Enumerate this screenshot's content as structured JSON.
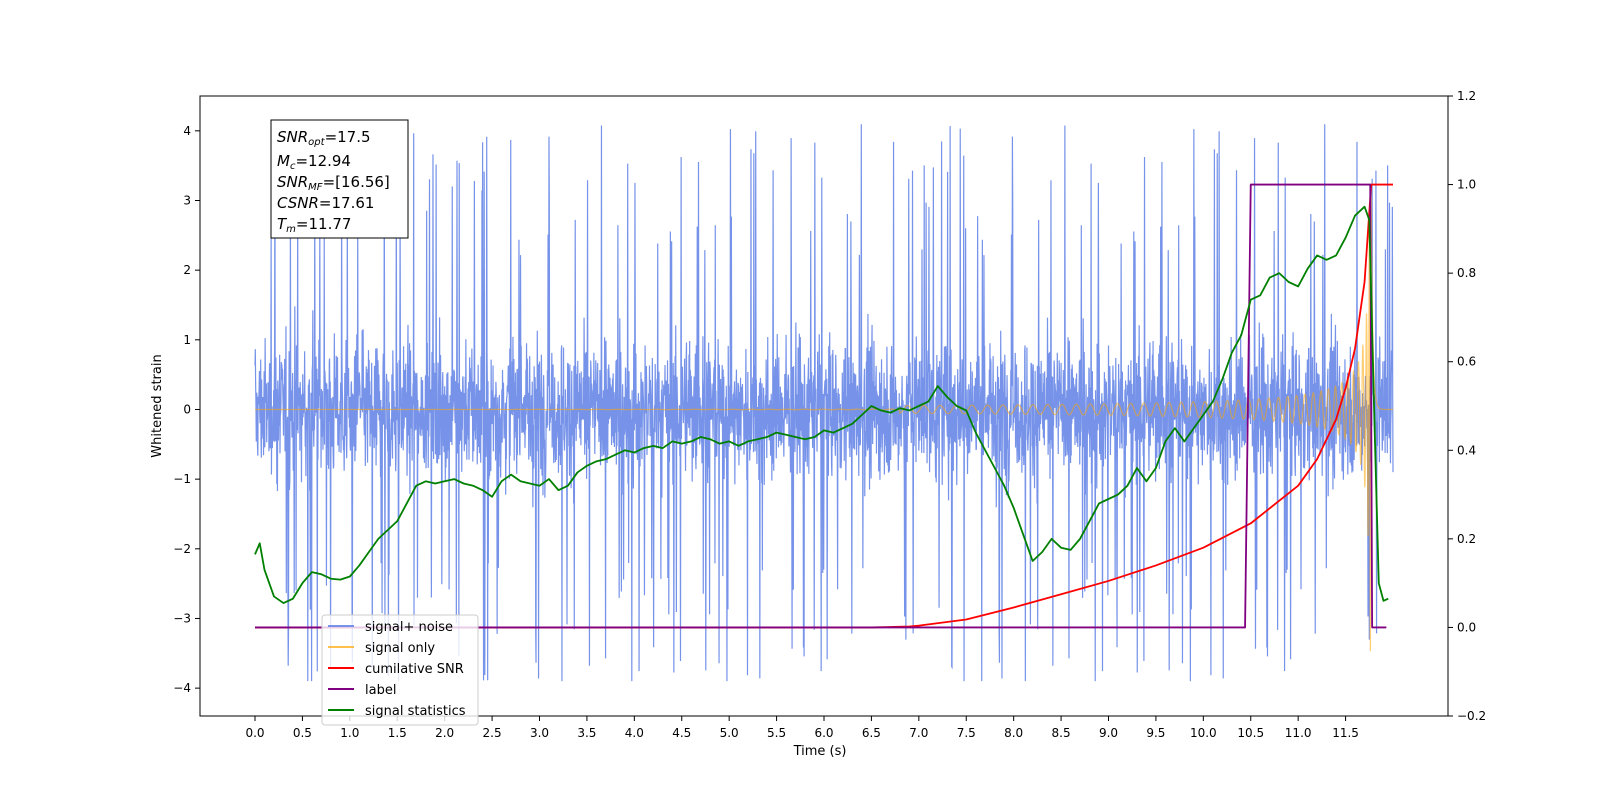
{
  "chart_data": {
    "type": "line",
    "title": "",
    "xlabel": "Time (s)",
    "ylabel": "Whitened strain",
    "xlim": [
      -0.58,
      12.58
    ],
    "ylim": [
      -4.4,
      4.5
    ],
    "y2lim": [
      -0.2,
      1.2
    ],
    "x_ticks": [
      0.0,
      0.5,
      1.0,
      1.5,
      2.0,
      2.5,
      3.0,
      3.5,
      4.0,
      4.5,
      5.0,
      5.5,
      6.0,
      6.5,
      7.0,
      7.5,
      8.0,
      8.5,
      9.0,
      9.5,
      10.0,
      10.5,
      11.0,
      11.5
    ],
    "x_tick_labels": [
      "0.0",
      "0.5",
      "1.0",
      "1.5",
      "2.0",
      "2.5",
      "3.0",
      "3.5",
      "4.0",
      "4.5",
      "5.0",
      "5.5",
      "6.0",
      "6.5",
      "7.0",
      "7.5",
      "8.0",
      "8.5",
      "9.0",
      "9.5",
      "10.0",
      "10.5",
      "11.0",
      "11.5"
    ],
    "y_ticks": [
      -4,
      -3,
      -2,
      -1,
      0,
      1,
      2,
      3,
      4
    ],
    "y_tick_labels": [
      "−4",
      "−3",
      "−2",
      "−1",
      "0",
      "1",
      "2",
      "3",
      "4"
    ],
    "y2_ticks": [
      -0.2,
      0.0,
      0.2,
      0.4,
      0.6,
      0.8,
      1.0,
      1.2
    ],
    "y2_tick_labels": [
      "−0.2",
      "0.0",
      "0.2",
      "0.4",
      "0.6",
      "0.8",
      "1.0",
      "1.2"
    ],
    "grid": false,
    "legend_position": "lower-left",
    "annotation": {
      "lines": [
        {
          "base": "SNR",
          "sub": "opt",
          "value": "=17.5"
        },
        {
          "base": "M",
          "sub": "c",
          "value": "=12.94"
        },
        {
          "base": "SNR",
          "sub": "MF",
          "value": "=[16.56]"
        },
        {
          "base": "CSNR",
          "sub": "",
          "value": "=17.61"
        },
        {
          "base": "T",
          "sub": "m",
          "value": "=11.77"
        }
      ]
    },
    "series": [
      {
        "name": "signal+ noise",
        "axis": "left",
        "color": "#4169e1",
        "style": "noise",
        "x_range": [
          0.0,
          12.0
        ],
        "envelope": {
          "upper_typical": 2.2,
          "lower_typical": -2.3,
          "max": 4.1,
          "min": -3.9
        }
      },
      {
        "name": "signal only",
        "axis": "left",
        "color": "#ffa500",
        "style": "chirp",
        "x_range": [
          0.0,
          12.0
        ],
        "merger_time": 11.77,
        "peak_amplitude": 3.55
      },
      {
        "name": "cumilative SNR",
        "axis": "right",
        "color": "#ff0000",
        "x": [
          0.0,
          6.5,
          6.9,
          7.0,
          7.5,
          8.0,
          8.5,
          9.0,
          9.5,
          10.0,
          10.5,
          11.0,
          11.2,
          11.4,
          11.5,
          11.6,
          11.7,
          11.77,
          12.0
        ],
        "values": [
          0.0,
          0.0,
          0.002,
          0.004,
          0.018,
          0.045,
          0.075,
          0.105,
          0.14,
          0.18,
          0.235,
          0.32,
          0.38,
          0.47,
          0.54,
          0.63,
          0.78,
          1.0,
          1.0
        ]
      },
      {
        "name": "label",
        "axis": "right",
        "color": "#800080",
        "x": [
          0.0,
          10.44,
          10.5,
          11.76,
          11.78,
          11.93
        ],
        "values": [
          0.0,
          0.0,
          1.0,
          1.0,
          0.0,
          0.0
        ]
      },
      {
        "name": "signal statistics",
        "axis": "right",
        "color": "#008000",
        "x": [
          0.0,
          0.05,
          0.1,
          0.2,
          0.3,
          0.4,
          0.5,
          0.6,
          0.7,
          0.8,
          0.9,
          1.0,
          1.1,
          1.2,
          1.3,
          1.4,
          1.5,
          1.6,
          1.7,
          1.8,
          1.9,
          2.0,
          2.1,
          2.2,
          2.3,
          2.4,
          2.5,
          2.6,
          2.7,
          2.8,
          2.9,
          3.0,
          3.1,
          3.2,
          3.3,
          3.4,
          3.5,
          3.6,
          3.7,
          3.8,
          3.9,
          4.0,
          4.1,
          4.2,
          4.3,
          4.4,
          4.5,
          4.6,
          4.7,
          4.8,
          4.9,
          5.0,
          5.1,
          5.2,
          5.3,
          5.4,
          5.5,
          5.6,
          5.7,
          5.8,
          5.9,
          6.0,
          6.1,
          6.2,
          6.3,
          6.4,
          6.5,
          6.6,
          6.7,
          6.8,
          6.9,
          7.0,
          7.1,
          7.2,
          7.3,
          7.4,
          7.5,
          7.6,
          7.7,
          7.8,
          7.9,
          8.0,
          8.1,
          8.2,
          8.3,
          8.4,
          8.5,
          8.6,
          8.7,
          8.8,
          8.9,
          9.0,
          9.1,
          9.2,
          9.3,
          9.4,
          9.5,
          9.6,
          9.7,
          9.8,
          9.9,
          10.0,
          10.1,
          10.2,
          10.3,
          10.4,
          10.5,
          10.6,
          10.7,
          10.8,
          10.9,
          11.0,
          11.1,
          11.2,
          11.3,
          11.4,
          11.5,
          11.6,
          11.7,
          11.75,
          11.8,
          11.85,
          11.9,
          11.95
        ],
        "values": [
          0.165,
          0.19,
          0.13,
          0.07,
          0.055,
          0.065,
          0.1,
          0.125,
          0.12,
          0.11,
          0.108,
          0.115,
          0.14,
          0.17,
          0.2,
          0.22,
          0.24,
          0.28,
          0.32,
          0.33,
          0.325,
          0.33,
          0.335,
          0.325,
          0.32,
          0.31,
          0.295,
          0.33,
          0.345,
          0.33,
          0.325,
          0.32,
          0.335,
          0.31,
          0.32,
          0.35,
          0.365,
          0.375,
          0.38,
          0.39,
          0.4,
          0.395,
          0.405,
          0.41,
          0.405,
          0.42,
          0.415,
          0.42,
          0.43,
          0.425,
          0.415,
          0.42,
          0.41,
          0.42,
          0.425,
          0.43,
          0.44,
          0.435,
          0.43,
          0.425,
          0.43,
          0.445,
          0.44,
          0.45,
          0.46,
          0.48,
          0.5,
          0.49,
          0.485,
          0.495,
          0.49,
          0.5,
          0.51,
          0.545,
          0.52,
          0.5,
          0.49,
          0.44,
          0.4,
          0.36,
          0.32,
          0.27,
          0.21,
          0.15,
          0.17,
          0.2,
          0.18,
          0.175,
          0.2,
          0.24,
          0.28,
          0.29,
          0.3,
          0.32,
          0.36,
          0.33,
          0.36,
          0.42,
          0.45,
          0.42,
          0.45,
          0.48,
          0.51,
          0.56,
          0.62,
          0.66,
          0.74,
          0.75,
          0.79,
          0.8,
          0.78,
          0.77,
          0.81,
          0.84,
          0.83,
          0.84,
          0.88,
          0.93,
          0.95,
          0.92,
          0.5,
          0.1,
          0.06,
          0.065
        ]
      }
    ]
  }
}
